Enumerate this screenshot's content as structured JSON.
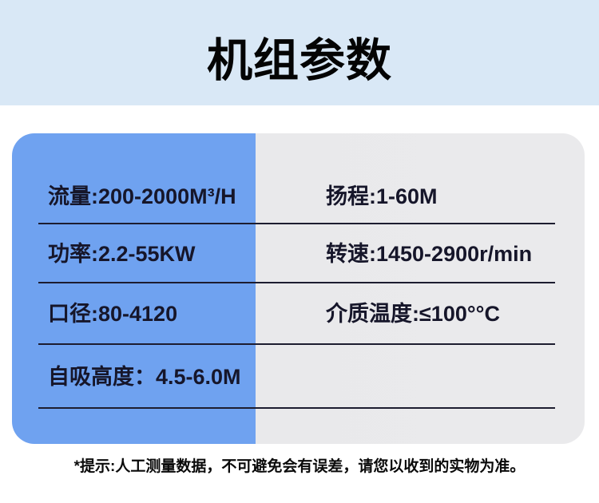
{
  "header": {
    "title": "机组参数",
    "band_color": "#d9e8f6"
  },
  "table": {
    "left_panel_color": "#6fa2f0",
    "right_panel_color": "#e9e9eb",
    "divider_color": "#1d1d30",
    "text_color": "#16162a",
    "rows": [
      {
        "left": "流量:200-2000M³/H",
        "right": "扬程:1-60M"
      },
      {
        "left": "功率:2.2-55KW",
        "right": "转速:1450-2900r/min"
      },
      {
        "left": "口径:80-4120",
        "right": "介质温度:≤100°°C"
      },
      {
        "left": "自吸高度：4.5-6.0M",
        "right": ""
      }
    ]
  },
  "footer": {
    "note": "*提示:人工测量数据，不可避免会有误差，请您以收到的实物为准。"
  }
}
